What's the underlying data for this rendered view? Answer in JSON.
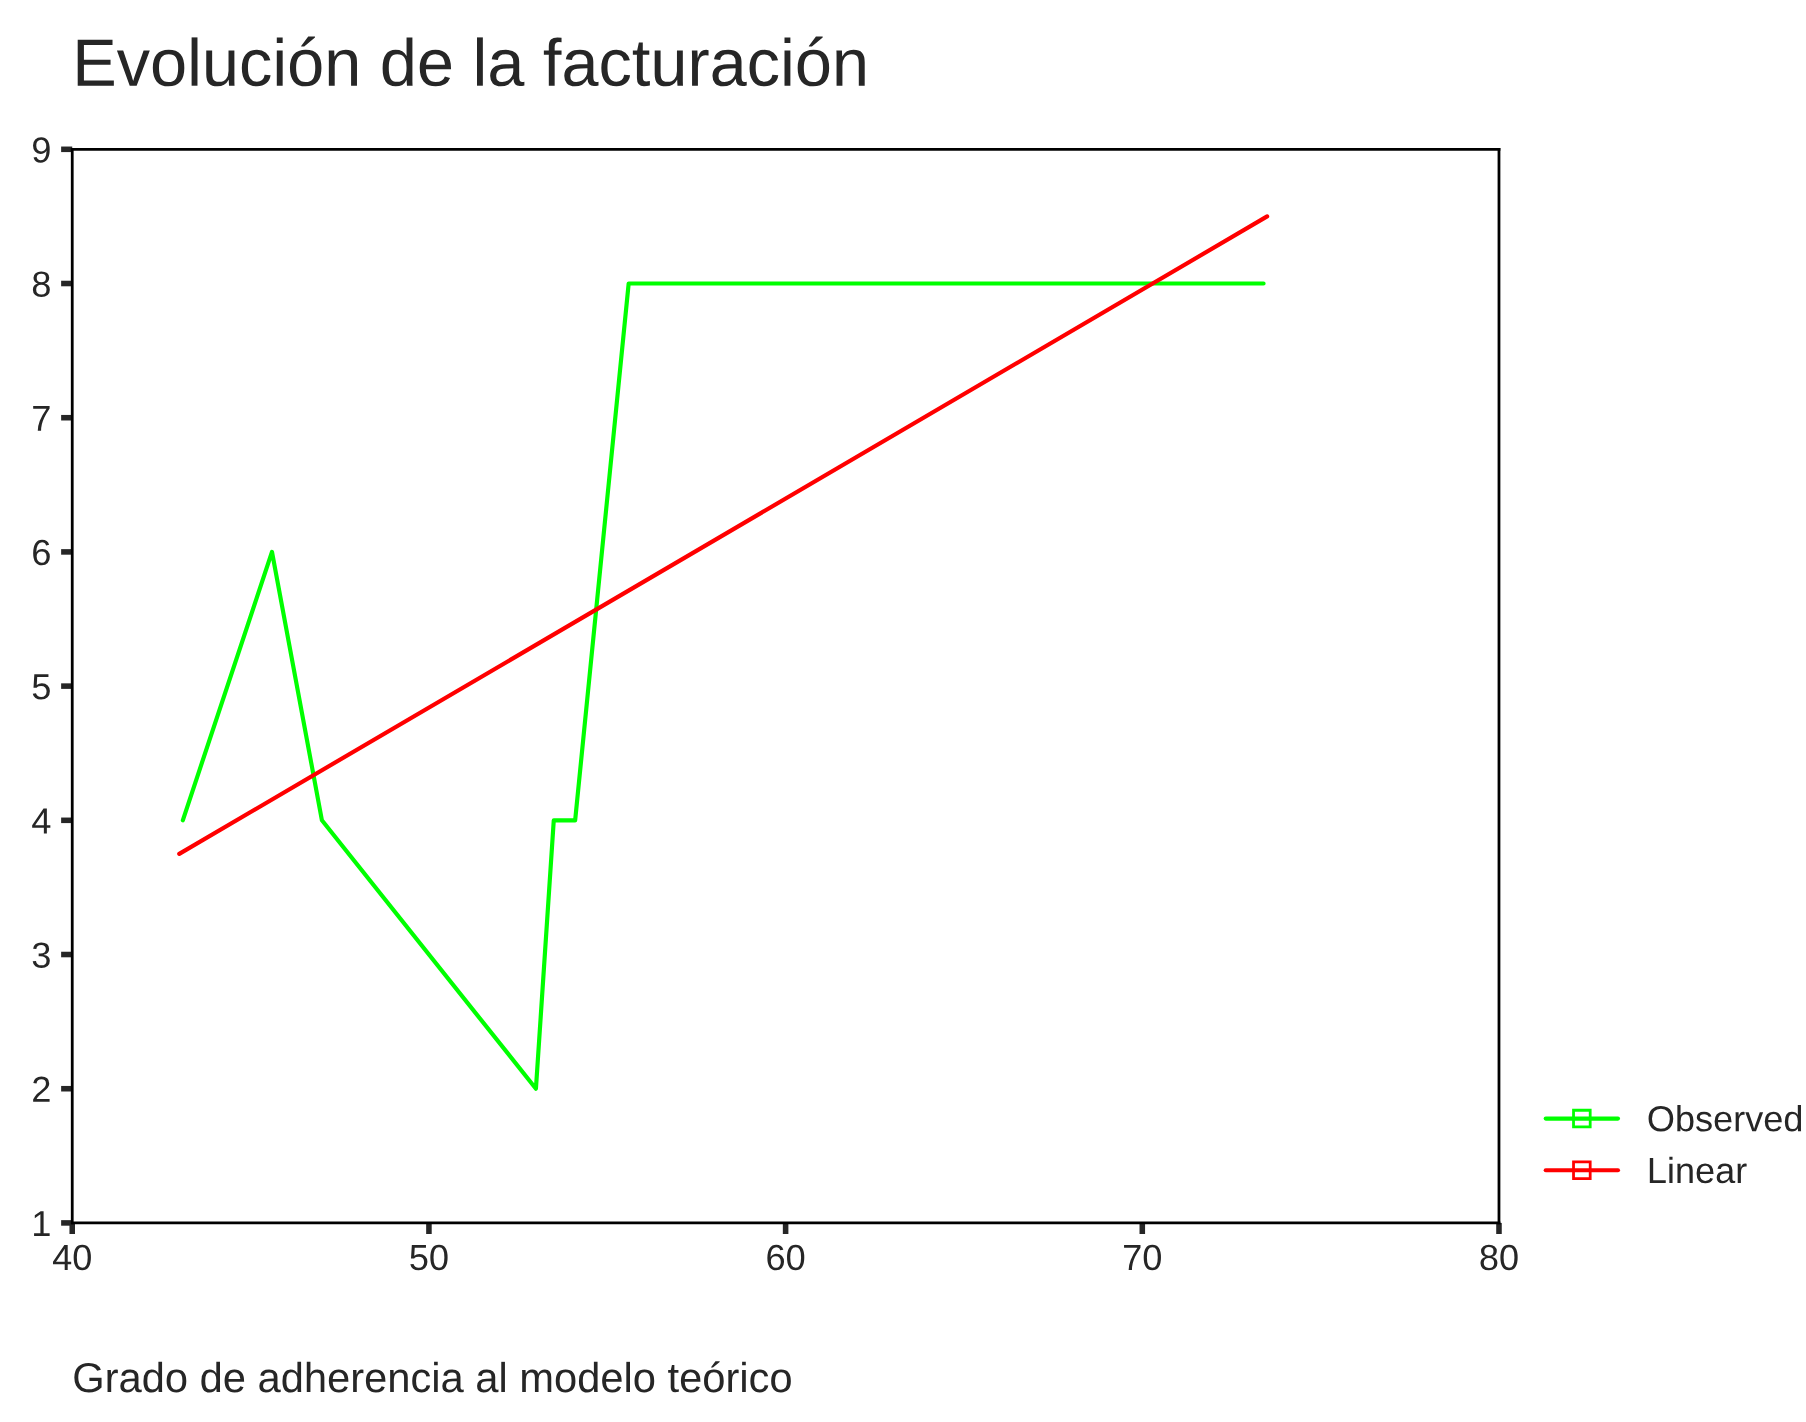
{
  "chart_data": {
    "type": "line",
    "title": "Evolución de la facturación",
    "xlabel": "Grado de adherencia al modelo teórico",
    "series": [
      {
        "name": "Observed",
        "color": "#00ff00",
        "x": [
          43.1,
          45.6,
          47.0,
          53.0,
          53.5,
          54.1,
          55.6,
          73.4
        ],
        "values": [
          4,
          6,
          4,
          2,
          4,
          4,
          8,
          8
        ]
      },
      {
        "name": "Linear",
        "color": "#ff0000",
        "x": [
          43.0,
          73.5
        ],
        "values": [
          3.75,
          8.5
        ]
      }
    ],
    "xlim": [
      40,
      80
    ],
    "xticks": [
      40,
      50,
      60,
      70,
      80
    ],
    "ylim": [
      1,
      9
    ],
    "yticks": [
      1,
      2,
      3,
      4,
      5,
      6,
      7,
      8,
      9
    ],
    "grid": false,
    "legend": "right",
    "marker": "none",
    "line_style": "solid"
  }
}
